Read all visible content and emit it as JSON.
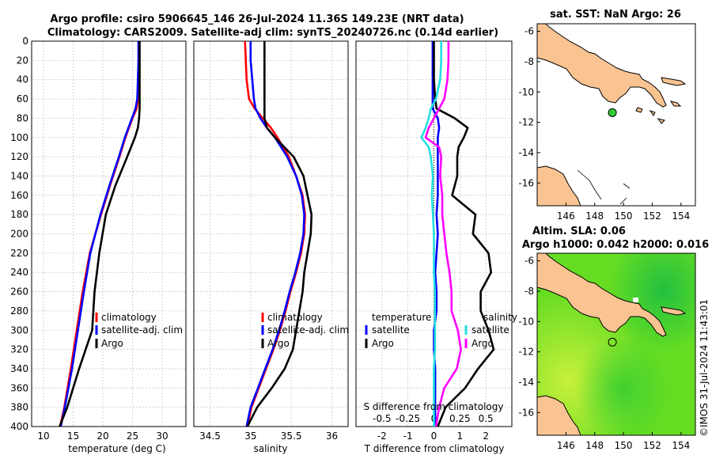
{
  "titles": {
    "line1": "Argo profile: csiro 5906645_146 26-Jul-2024 11.36S 149.23E (NRT data)",
    "line2": "Climatology: CARS2009. Satellite-adj clim: synTS_20240726.nc (0.14d earlier)",
    "sst": "sat. SST: NaN Argo: 26",
    "sla1": "Altim. SLA: 0.06",
    "sla2": "Argo h1000: 0.042 h2000: 0.016",
    "credit": "©IMOS 31-Jul-2024 11:43:01"
  },
  "colors": {
    "climatology": "#ff0000",
    "satellite": "#0000ff",
    "argo": "#000000",
    "temp_diff_sat": "#0000ff",
    "sal_diff_sat": "#22e0e0",
    "sal_diff_argo": "#ff00ff",
    "land": "#f9c492",
    "sla_fill": "#66dd22"
  },
  "chart_data": [
    {
      "id": "temperature",
      "type": "line",
      "xlabel": "temperature (deg C)",
      "xlim": [
        8,
        34
      ],
      "ylim": [
        0,
        400
      ],
      "y_reversed": true,
      "xticks": [
        "10",
        "15",
        "20",
        "25",
        "30"
      ],
      "yticks": [
        "0",
        "20",
        "40",
        "60",
        "80",
        "100",
        "120",
        "140",
        "160",
        "180",
        "200",
        "220",
        "240",
        "260",
        "280",
        "300",
        "320",
        "340",
        "360",
        "380",
        "400"
      ],
      "legend": [
        "climatology",
        "satellite-adj. clim",
        "Argo"
      ],
      "depth": [
        0,
        20,
        40,
        60,
        70,
        80,
        90,
        100,
        120,
        150,
        180,
        220,
        260,
        300,
        340,
        380,
        400
      ],
      "series": [
        {
          "name": "climatology",
          "values": [
            26.1,
            26.1,
            26.0,
            25.9,
            25.7,
            25.0,
            24.4,
            23.8,
            22.8,
            21.2,
            19.7,
            17.8,
            16.6,
            15.6,
            14.6,
            13.5,
            12.8
          ]
        },
        {
          "name": "satellite-adj. clim",
          "values": [
            26.0,
            26.0,
            25.9,
            25.8,
            25.5,
            24.9,
            24.3,
            23.7,
            22.7,
            21.1,
            19.6,
            17.9,
            16.8,
            15.8,
            14.8,
            13.6,
            12.9
          ]
        },
        {
          "name": "Argo",
          "values": [
            26.2,
            26.2,
            26.2,
            26.2,
            26.2,
            26.1,
            25.9,
            25.4,
            24.1,
            22.1,
            20.5,
            19.4,
            18.6,
            18.2,
            16.0,
            14.0,
            12.7
          ]
        }
      ]
    },
    {
      "id": "salinity",
      "type": "line",
      "xlabel": "salinity",
      "xlim": [
        34.3,
        36.2
      ],
      "ylim": [
        0,
        400
      ],
      "y_reversed": true,
      "xticks": [
        "34.5",
        "35",
        "35.5",
        "36"
      ],
      "legend": [
        "climatology",
        "satellite-adj. clim",
        "Argo"
      ],
      "depth": [
        0,
        20,
        40,
        60,
        70,
        80,
        90,
        100,
        120,
        140,
        160,
        180,
        200,
        220,
        240,
        260,
        280,
        300,
        320,
        340,
        360,
        380,
        400
      ],
      "series": [
        {
          "name": "climatology",
          "values": [
            34.93,
            34.94,
            34.95,
            34.98,
            35.05,
            35.15,
            35.25,
            35.33,
            35.47,
            35.56,
            35.64,
            35.67,
            35.66,
            35.62,
            35.56,
            35.49,
            35.43,
            35.36,
            35.28,
            35.19,
            35.1,
            35.01,
            34.96
          ]
        },
        {
          "name": "satellite-adj. clim",
          "values": [
            35.0,
            35.0,
            35.02,
            35.04,
            35.06,
            35.12,
            35.2,
            35.3,
            35.45,
            35.56,
            35.63,
            35.66,
            35.65,
            35.61,
            35.55,
            35.48,
            35.42,
            35.35,
            35.27,
            35.18,
            35.09,
            35.0,
            34.95
          ]
        },
        {
          "name": "Argo",
          "values": [
            35.17,
            35.17,
            35.17,
            35.17,
            35.17,
            35.17,
            35.2,
            35.3,
            35.53,
            35.65,
            35.7,
            35.75,
            35.74,
            35.7,
            35.66,
            35.64,
            35.6,
            35.56,
            35.52,
            35.42,
            35.26,
            35.08,
            34.96
          ]
        }
      ]
    },
    {
      "id": "difference",
      "type": "line",
      "xlabel": "T difference from climatology",
      "top_label": "S difference from climatology",
      "xlim": [
        -3,
        3
      ],
      "s_xlim": [
        -0.75,
        0.75
      ],
      "ylim": [
        0,
        400
      ],
      "y_reversed": true,
      "xticks": [
        "-2",
        "-1",
        "0",
        "1",
        "2"
      ],
      "s_xticks": [
        "-0.5",
        "-0.25",
        "0",
        "0.25",
        "0.5"
      ],
      "legend_left": [
        "temperature",
        "satellite",
        "Argo"
      ],
      "legend_right": [
        "salinity",
        "satellite",
        "Argo"
      ],
      "depth": [
        0,
        20,
        40,
        60,
        70,
        80,
        90,
        100,
        110,
        120,
        140,
        160,
        180,
        200,
        220,
        240,
        260,
        280,
        300,
        320,
        340,
        360,
        380,
        400
      ],
      "series": [
        {
          "name": "temperature satellite",
          "axis": "T",
          "values": [
            -0.05,
            -0.05,
            -0.05,
            -0.05,
            -0.05,
            0.15,
            0.2,
            0.15,
            0.15,
            0.15,
            0.15,
            0.15,
            0.1,
            0.15,
            0.1,
            0.05,
            0.1,
            0.1,
            0.0,
            0.0,
            0.05,
            0.05,
            0.05,
            0.05
          ]
        },
        {
          "name": "temperature Argo",
          "axis": "T",
          "values": [
            0.0,
            0.0,
            0.0,
            0.05,
            0.1,
            0.8,
            1.3,
            1.15,
            0.95,
            0.9,
            0.9,
            0.7,
            1.6,
            1.5,
            2.1,
            2.2,
            1.8,
            1.8,
            2.1,
            2.3,
            1.7,
            1.2,
            0.45,
            0.15
          ]
        },
        {
          "name": "salinity satellite",
          "axis": "S",
          "values": [
            0.07,
            0.07,
            0.06,
            0.02,
            -0.03,
            -0.05,
            -0.08,
            -0.12,
            -0.05,
            -0.03,
            -0.01,
            -0.02,
            -0.01,
            0.0,
            0.0,
            0.0,
            0.01,
            0.01,
            0.01,
            0.01,
            0.0,
            0.0,
            0.0,
            0.0
          ]
        },
        {
          "name": "salinity Argo",
          "axis": "S",
          "values": [
            0.14,
            0.14,
            0.13,
            0.1,
            0.05,
            0.0,
            -0.05,
            -0.08,
            0.05,
            0.07,
            0.06,
            0.08,
            0.08,
            0.1,
            0.12,
            0.15,
            0.17,
            0.17,
            0.23,
            0.26,
            0.22,
            0.1,
            0.05,
            0.02
          ]
        }
      ]
    },
    {
      "id": "sst_map",
      "type": "scatter",
      "title": "sat. SST: NaN Argo: 26",
      "xlim": [
        144,
        155
      ],
      "ylim": [
        -17.5,
        -5.5
      ],
      "xticks": [
        "146",
        "148",
        "150",
        "152",
        "154"
      ],
      "yticks": [
        "-6",
        "-8",
        "-10",
        "-12",
        "-14",
        "-16"
      ],
      "points": [
        {
          "lon": 149.23,
          "lat": -11.36
        }
      ]
    },
    {
      "id": "sla_map",
      "type": "heatmap",
      "title": "Altim. SLA: 0.06",
      "xlim": [
        144,
        155
      ],
      "ylim": [
        -17.5,
        -5.5
      ],
      "xticks": [
        "146",
        "148",
        "150",
        "152",
        "154"
      ],
      "yticks": [
        "-6",
        "-8",
        "-10",
        "-12",
        "-14",
        "-16"
      ],
      "points": [
        {
          "lon": 149.23,
          "lat": -11.36
        }
      ]
    }
  ]
}
